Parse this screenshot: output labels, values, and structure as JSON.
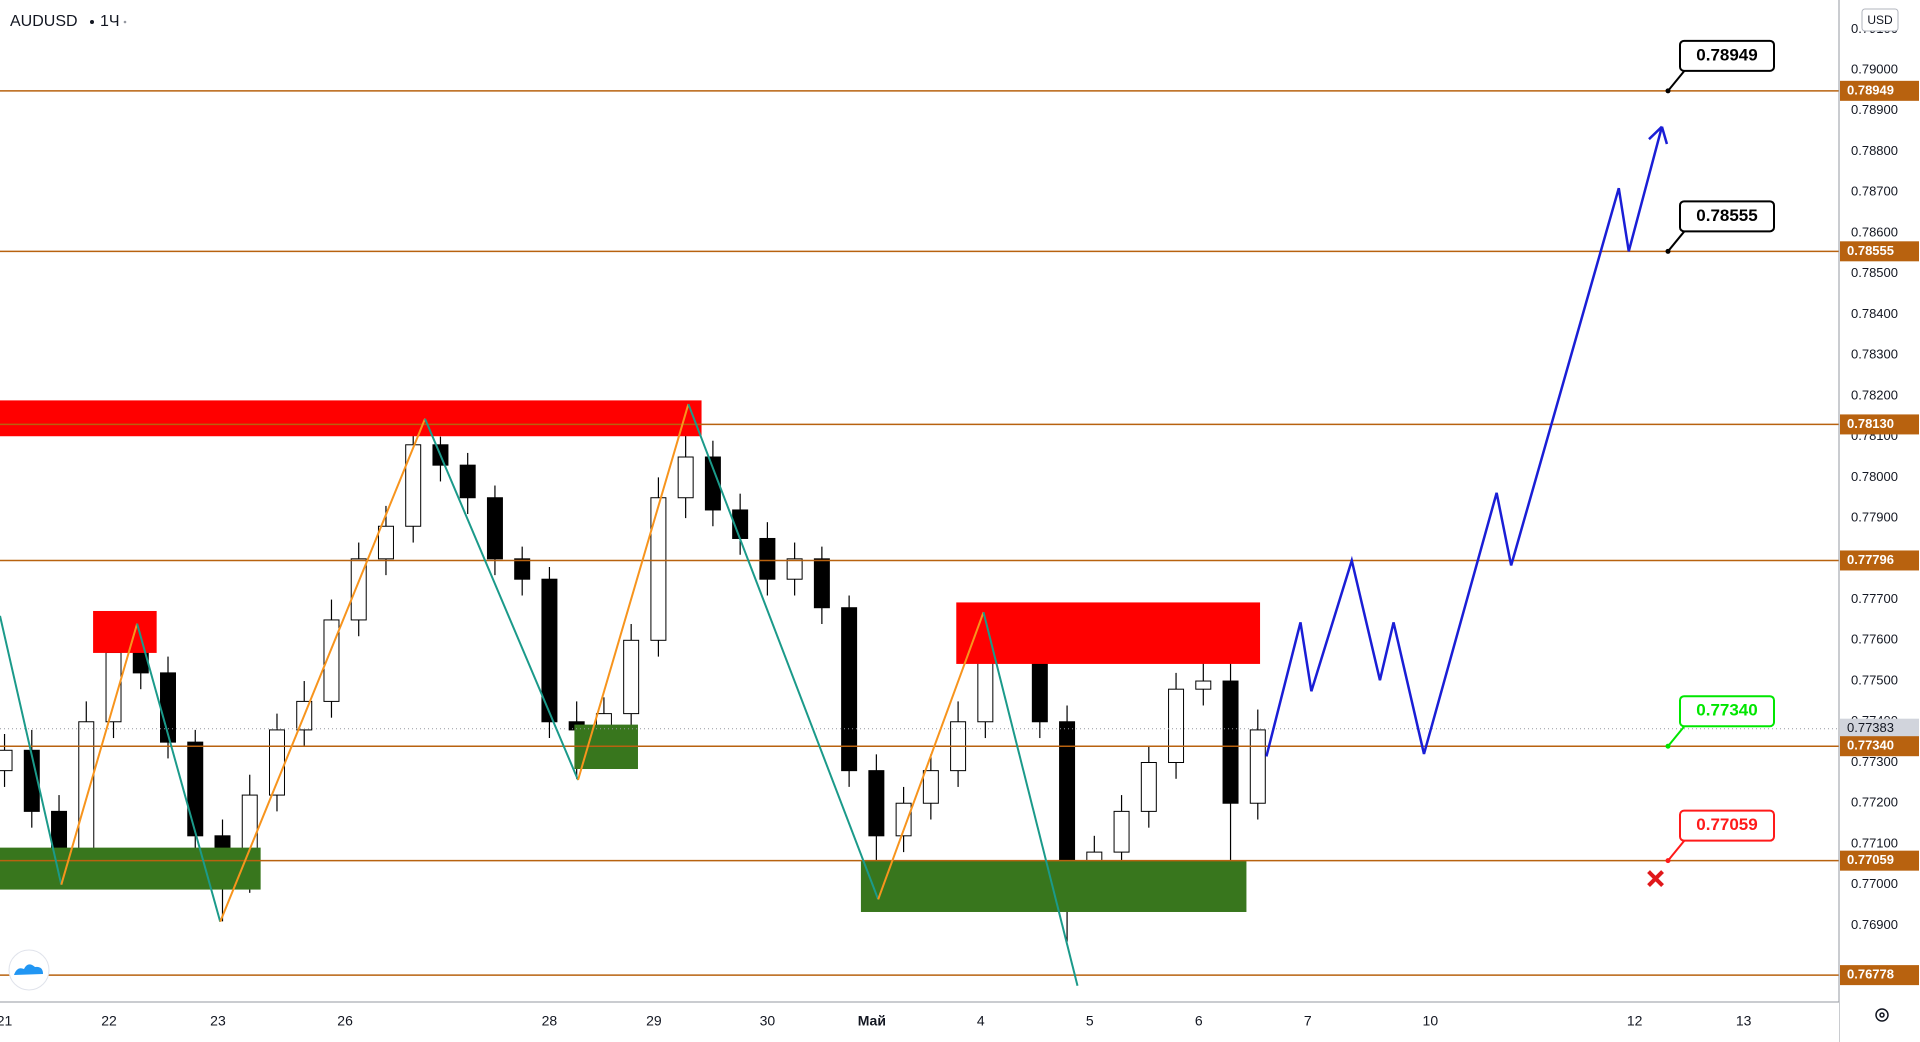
{
  "chart_data": {
    "type": "candlestick",
    "symbol": "AUDUSD",
    "interval": "1Ч",
    "currency": "USD",
    "xlim": [
      -1,
      404
    ],
    "ylim": [
      0.76712,
      0.79172
    ],
    "grid": false,
    "xticks": [
      {
        "value": 0,
        "label": "21"
      },
      {
        "value": 23,
        "label": "22"
      },
      {
        "value": 47,
        "label": "23"
      },
      {
        "value": 75,
        "label": "26"
      },
      {
        "value": 120,
        "label": "28"
      },
      {
        "value": 143,
        "label": "29"
      },
      {
        "value": 168,
        "label": "30"
      },
      {
        "value": 191,
        "label": "Май"
      },
      {
        "value": 215,
        "label": "4"
      },
      {
        "value": 239,
        "label": "5"
      },
      {
        "value": 263,
        "label": "6"
      },
      {
        "value": 287,
        "label": "7"
      },
      {
        "value": 314,
        "label": "10"
      },
      {
        "value": 359,
        "label": "12"
      },
      {
        "value": 383,
        "label": "13"
      }
    ],
    "yticks": [
      {
        "value": 0.769,
        "label": "0.76900"
      },
      {
        "value": 0.77,
        "label": "0.77000"
      },
      {
        "value": 0.771,
        "label": "0.77100"
      },
      {
        "value": 0.772,
        "label": "0.77200"
      },
      {
        "value": 0.773,
        "label": "0.77300"
      },
      {
        "value": 0.774,
        "label": "0.77400"
      },
      {
        "value": 0.775,
        "label": "0.77500"
      },
      {
        "value": 0.776,
        "label": "0.77600"
      },
      {
        "value": 0.777,
        "label": "0.77700"
      },
      {
        "value": 0.778,
        "label": "0.77800"
      },
      {
        "value": 0.779,
        "label": "0.77900"
      },
      {
        "value": 0.78,
        "label": "0.78000"
      },
      {
        "value": 0.781,
        "label": "0.78100"
      },
      {
        "value": 0.782,
        "label": "0.78200"
      },
      {
        "value": 0.783,
        "label": "0.78300"
      },
      {
        "value": 0.784,
        "label": "0.78400"
      },
      {
        "value": 0.785,
        "label": "0.78500"
      },
      {
        "value": 0.786,
        "label": "0.78600"
      },
      {
        "value": 0.787,
        "label": "0.78700"
      },
      {
        "value": 0.788,
        "label": "0.78800"
      },
      {
        "value": 0.789,
        "label": "0.78900"
      },
      {
        "value": 0.79,
        "label": "0.79000"
      },
      {
        "value": 0.791,
        "label": "0.79100"
      }
    ],
    "candles": {
      "up_color": "#ffffff",
      "down_color": "#000000",
      "x": [
        0,
        6,
        12,
        18,
        24,
        30,
        36,
        42,
        48,
        54,
        60,
        66,
        72,
        78,
        84,
        90,
        96,
        102,
        108,
        114,
        120,
        126,
        132,
        138,
        144,
        150,
        156,
        162,
        168,
        174,
        180,
        186,
        192,
        198,
        204,
        210,
        216,
        222,
        228,
        234,
        240,
        246,
        252,
        258,
        264,
        270,
        276
      ],
      "open": [
        0.7728,
        0.7733,
        0.7718,
        0.7703,
        0.774,
        0.7757,
        0.7752,
        0.7735,
        0.7712,
        0.7702,
        0.7722,
        0.7738,
        0.7745,
        0.7765,
        0.778,
        0.7788,
        0.7808,
        0.7803,
        0.7795,
        0.778,
        0.7775,
        0.774,
        0.7738,
        0.7742,
        0.776,
        0.7795,
        0.7805,
        0.7792,
        0.7785,
        0.7775,
        0.778,
        0.7768,
        0.7728,
        0.7712,
        0.772,
        0.7728,
        0.774,
        0.7762,
        0.776,
        0.774,
        0.7702,
        0.7708,
        0.7718,
        0.773,
        0.7748,
        0.775,
        0.772
      ],
      "high": [
        0.7737,
        0.7738,
        0.7722,
        0.7745,
        0.7762,
        0.776,
        0.7756,
        0.7738,
        0.7716,
        0.7727,
        0.7742,
        0.775,
        0.777,
        0.7784,
        0.7793,
        0.7814,
        0.781,
        0.7806,
        0.7798,
        0.7783,
        0.7778,
        0.7745,
        0.7746,
        0.7764,
        0.78,
        0.7818,
        0.7809,
        0.7796,
        0.7789,
        0.7784,
        0.7783,
        0.7771,
        0.7732,
        0.7724,
        0.7732,
        0.7745,
        0.7767,
        0.7767,
        0.7763,
        0.7744,
        0.7712,
        0.7722,
        0.7734,
        0.7752,
        0.7756,
        0.7758,
        0.7743
      ],
      "low": [
        0.7724,
        0.7714,
        0.7699,
        0.77,
        0.7736,
        0.7748,
        0.7731,
        0.7707,
        0.7691,
        0.7698,
        0.7718,
        0.7734,
        0.7741,
        0.7761,
        0.7776,
        0.7784,
        0.7799,
        0.7791,
        0.7776,
        0.7771,
        0.7736,
        0.7726,
        0.7734,
        0.7738,
        0.7756,
        0.779,
        0.7788,
        0.7781,
        0.7771,
        0.7771,
        0.7764,
        0.7724,
        0.7705,
        0.7708,
        0.7716,
        0.7724,
        0.7736,
        0.7755,
        0.7736,
        0.7686,
        0.7698,
        0.7704,
        0.7714,
        0.7726,
        0.7744,
        0.77,
        0.7716
      ],
      "close": [
        0.7733,
        0.7718,
        0.7703,
        0.774,
        0.7757,
        0.7752,
        0.7735,
        0.7712,
        0.7702,
        0.7722,
        0.7738,
        0.7745,
        0.7765,
        0.778,
        0.7788,
        0.7808,
        0.7803,
        0.7795,
        0.778,
        0.7775,
        0.774,
        0.7738,
        0.7742,
        0.776,
        0.7795,
        0.7805,
        0.7792,
        0.7785,
        0.7775,
        0.778,
        0.7768,
        0.7728,
        0.7712,
        0.772,
        0.7728,
        0.774,
        0.7762,
        0.776,
        0.774,
        0.7702,
        0.7708,
        0.7718,
        0.773,
        0.7748,
        0.775,
        0.772,
        0.7738
      ]
    },
    "zones": [
      {
        "from": -1,
        "to": 153.5,
        "low": 0.78101,
        "high": 0.78189,
        "color": "#ff0000"
      },
      {
        "from": 19.5,
        "to": 33.5,
        "low": 0.77569,
        "high": 0.77672,
        "color": "#ff0000"
      },
      {
        "from": 209.6,
        "to": 276.5,
        "low": 0.77542,
        "high": 0.77693,
        "color": "#ff0000"
      },
      {
        "from": -1,
        "to": 56.4,
        "low": 0.76988,
        "high": 0.77091,
        "color": "#38761d"
      },
      {
        "from": 125.5,
        "to": 139.5,
        "low": 0.77284,
        "high": 0.77393,
        "color": "#38761d"
      },
      {
        "from": 188.6,
        "to": 273.5,
        "low": 0.76933,
        "high": 0.7706,
        "color": "#38761d"
      }
    ],
    "level_color": "#b8620f",
    "levels": [
      {
        "value": 0.78949,
        "label": "0.78949",
        "callout": "#000000"
      },
      {
        "value": 0.78555,
        "label": "0.78555",
        "callout": "#000000"
      },
      {
        "value": 0.7813,
        "label": "0.78130"
      },
      {
        "value": 0.77796,
        "label": "0.77796"
      },
      {
        "value": 0.7734,
        "label": "0.77340",
        "callout": "#00e600"
      },
      {
        "value": 0.77059,
        "label": "0.77059",
        "callout": "#ff1a1a"
      },
      {
        "value": 0.76778,
        "label": "0.76778"
      }
    ],
    "current_price": {
      "value": 0.77383,
      "label": "0.77383"
    },
    "zigzag": {
      "up_color": "#f7941d",
      "down_color": "#1b9a8a",
      "x": [
        -1,
        12.5,
        29.2,
        47.5,
        92.6,
        126.3,
        150.6,
        192.4,
        215.6,
        236.3
      ],
      "y": [
        0.7766,
        0.77,
        0.77641,
        0.76909,
        0.78144,
        0.77257,
        0.7818,
        0.76964,
        0.77669,
        0.76752
      ]
    },
    "projection": {
      "color": "#1a1ed6",
      "x": [
        277.9,
        285.4,
        287.8,
        296.7,
        302.9,
        305.9,
        312.6,
        328.6,
        331.8,
        355.5,
        357.7,
        365.0
      ],
      "y": [
        0.77315,
        0.77644,
        0.77475,
        0.77796,
        0.77502,
        0.77644,
        0.77321,
        0.77962,
        0.77784,
        0.7871,
        0.78555,
        0.78861
      ]
    },
    "stop_marker": {
      "x": 363.6,
      "y": 0.77015,
      "color": "#e0181b"
    }
  }
}
